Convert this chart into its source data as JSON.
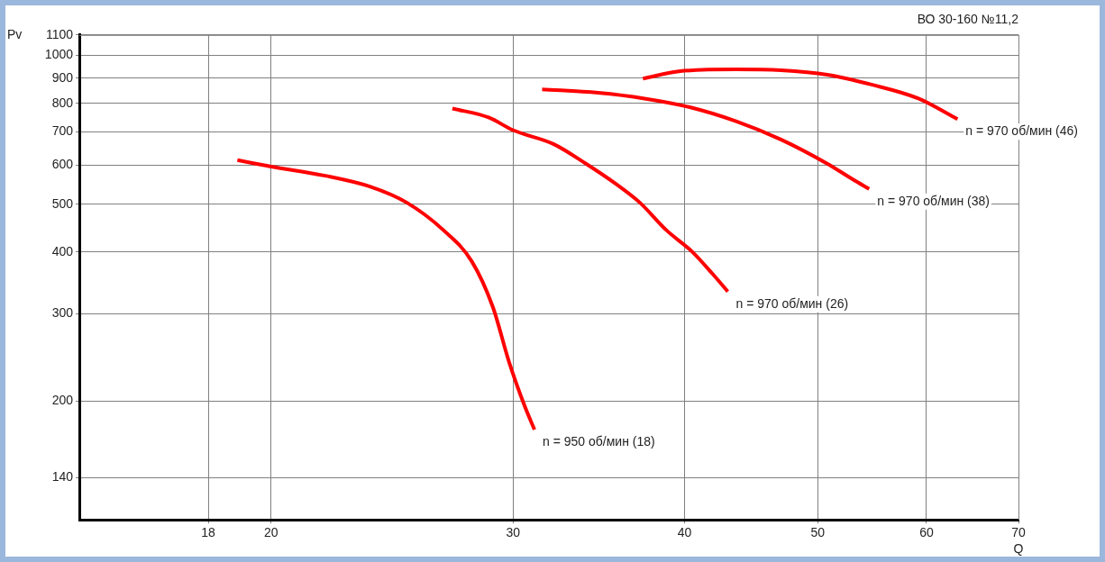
{
  "chart_data": {
    "type": "line",
    "title": "ВО 30-160 №11,2",
    "xlabel": "Q",
    "ylabel": "Pv",
    "log": "xy",
    "grid": true,
    "legend": false,
    "marker": "none",
    "line_style": "solid",
    "xlim": [
      14.5,
      70
    ],
    "xticks": [
      18,
      20,
      30,
      40,
      50,
      60,
      70
    ],
    "ylim": [
      115,
      1100
    ],
    "yticks": [
      140,
      200,
      300,
      400,
      500,
      600,
      700,
      800,
      900,
      1000,
      1100
    ],
    "series": [
      {
        "color": "#ff0000",
        "x": [
          18.9,
          20,
          21.9,
          23.6,
          25.1,
          26.7,
          28.0,
          29.0,
          29.8,
          30.6,
          31.1
        ],
        "values": [
          614,
          596,
          571,
          543,
          504,
          443,
          383,
          310,
          240,
          195,
          175
        ]
      },
      {
        "color": "#ff0000",
        "x": [
          27.1,
          28.8,
          30,
          32.1,
          33.9,
          35.7,
          37.1,
          38.8,
          40.5,
          41.9,
          43.0
        ],
        "values": [
          781,
          749,
          706,
          662,
          604,
          548,
          504,
          443,
          401,
          362,
          333
        ]
      },
      {
        "color": "#ff0000",
        "x": [
          31.5,
          34.6,
          37.4,
          40.4,
          43.6,
          47.0,
          50.8,
          53.1,
          54.5
        ],
        "values": [
          854,
          840,
          818,
          785,
          736,
          676,
          604,
          560,
          537
        ]
      },
      {
        "color": "#ff0000",
        "x": [
          37.3,
          39.7,
          43.6,
          47.0,
          50.8,
          54.8,
          59.2,
          63.2
        ],
        "values": [
          898,
          929,
          937,
          933,
          914,
          872,
          818,
          743
        ]
      }
    ],
    "annotations": [
      {
        "text": "n = 950 об/мин (18)",
        "x": 31.1,
        "y": 175
      },
      {
        "text": "n = 970 об/мин (26)",
        "x": 43.0,
        "y": 333
      },
      {
        "text": "n = 970 об/мин (38)",
        "x": 54.5,
        "y": 537
      },
      {
        "text": "n = 970 об/мин (46)",
        "x": 63.2,
        "y": 743
      }
    ]
  }
}
